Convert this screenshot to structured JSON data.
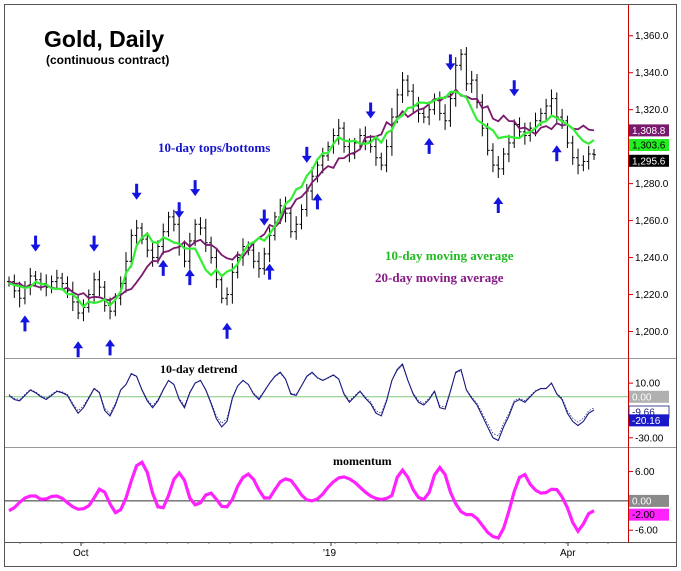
{
  "chart_data": {
    "type": "line",
    "title": "Gold, Daily",
    "subtitle": "(continuous contract)",
    "x_ticks": [
      "Oct",
      "'19",
      "Apr"
    ],
    "colors": {
      "bars": "#000000",
      "ma10": "#33ee33",
      "ma20": "#7a1a6e",
      "arrows": "#1414e0",
      "detrend": "#1a1a80",
      "momentum": "#ff22ff",
      "axis": "#cc0000",
      "annotation_blue": "#1414c8",
      "annotation_green": "#22bb22",
      "annotation_purple": "#881a88"
    },
    "annotations": {
      "tops_bottoms": "10-day tops/bottoms",
      "ma10_label": "10-day moving average",
      "ma20_label": "20-day moving average"
    },
    "price_panel": {
      "ylim": [
        1190,
        1375
      ],
      "yticks": [
        "1,360.0",
        "1,340.0",
        "1,320.0",
        "1,300.0",
        "1,280.0",
        "1,260.0",
        "1,240.0",
        "1,220.0",
        "1,200.0"
      ],
      "ytick_values": [
        1360,
        1340,
        1320,
        1300,
        1280,
        1260,
        1240,
        1220,
        1200
      ],
      "value_tags": [
        {
          "text": "1,308.8",
          "value": 1308.8,
          "bg": "#7a1a6e",
          "fg": "#ffffff"
        },
        {
          "text": "1,303.6",
          "value": 1303.6,
          "bg": "#22ee22",
          "fg": "#000000"
        },
        {
          "text": "1,295.6",
          "value": 1295.6,
          "bg": "#000000",
          "fg": "#ffffff"
        }
      ],
      "close": [
        1227,
        1222,
        1218,
        1224,
        1230,
        1228,
        1226,
        1224,
        1227,
        1229,
        1226,
        1222,
        1216,
        1210,
        1213,
        1220,
        1228,
        1224,
        1214,
        1211,
        1218,
        1226,
        1238,
        1252,
        1256,
        1250,
        1244,
        1240,
        1246,
        1254,
        1262,
        1258,
        1246,
        1238,
        1249,
        1258,
        1256,
        1248,
        1240,
        1228,
        1218,
        1220,
        1232,
        1240,
        1246,
        1244,
        1238,
        1234,
        1242,
        1252,
        1262,
        1268,
        1264,
        1254,
        1258,
        1266,
        1276,
        1284,
        1290,
        1295,
        1300,
        1306,
        1310,
        1300,
        1296,
        1302,
        1306,
        1303,
        1300,
        1294,
        1290,
        1300,
        1316,
        1328,
        1336,
        1330,
        1322,
        1318,
        1316,
        1320,
        1326,
        1318,
        1314,
        1326,
        1344,
        1350,
        1334,
        1336,
        1324,
        1310,
        1298,
        1290,
        1288,
        1296,
        1302,
        1312,
        1308,
        1306,
        1310,
        1314,
        1318,
        1322,
        1326,
        1316,
        1314,
        1302,
        1294,
        1290,
        1292,
        1296,
        1295.6
      ],
      "ma10": [
        1226.2,
        1225.1,
        1224.5,
        1223.6,
        1224.1,
        1226.9,
        1225.7,
        1225.5,
        1223.4,
        1223.0,
        1223.1,
        1220.2,
        1220.3,
        1217.2,
        1213.5,
        1216.2,
        1215.4,
        1216.1,
        1217.4,
        1214.1,
        1217.3,
        1221.6,
        1231.7,
        1235.6,
        1246.5,
        1250.7,
        1253.0,
        1248.5,
        1247.9,
        1250.9,
        1249.8,
        1248.1,
        1247.5,
        1245.0,
        1244.8,
        1244.9,
        1239.0,
        1233.3,
        1230.5,
        1233.4,
        1230.0,
        1232.4,
        1233.5,
        1236.5,
        1242.5,
        1247.0,
        1248.3,
        1250.7,
        1249.1,
        1252.7,
        1257.1,
        1262.2,
        1269.1,
        1271.4,
        1276.9,
        1278.2,
        1284.3,
        1287.4,
        1293.1,
        1296.4,
        1296.5,
        1301.5,
        1305.1,
        1303.3,
        1302.8,
        1303.2,
        1301.7,
        1301.5,
        1302.3,
        1305.2,
        1302.2,
        1307.4,
        1309.1,
        1315.1,
        1316.9,
        1320.9,
        1321.4,
        1323.9,
        1323.8,
        1323.4,
        1325.0,
        1326.5,
        1326.3,
        1329.6,
        1329.8,
        1328.1,
        1326.6,
        1320.5,
        1314.5,
        1312.5,
        1310.6,
        1308.8,
        1304.5,
        1305.2,
        1305.5,
        1304.9,
        1304.6,
        1307.2,
        1307.9,
        1310.0,
        1312.9,
        1313.7,
        1316.8,
        1315.6,
        1313.7,
        1311.9,
        1309.9,
        1306.2,
        1303.0,
        1301.6,
        1303.6
      ],
      "ma20": [
        1227.1,
        1225.8,
        1226.0,
        1223.8,
        1225.3,
        1224.6,
        1223.7,
        1224.8,
        1223.8,
        1223.1,
        1222.7,
        1223.7,
        1221.2,
        1219.8,
        1220.8,
        1218.1,
        1218.8,
        1218.5,
        1217.5,
        1216.9,
        1219.0,
        1219.7,
        1222.1,
        1223.0,
        1226.6,
        1230.6,
        1235.1,
        1238.2,
        1238.0,
        1242.9,
        1243.5,
        1245.1,
        1245.7,
        1248.6,
        1246.0,
        1248.5,
        1249.6,
        1246.8,
        1246.9,
        1244.9,
        1241.4,
        1239.6,
        1238.9,
        1241.8,
        1240.5,
        1244.2,
        1248.0,
        1250.6,
        1252.6,
        1257.6,
        1256.5,
        1259.4,
        1266.4,
        1266.8,
        1271.4,
        1272.8,
        1276.0,
        1280.7,
        1283.4,
        1287.1,
        1289.5,
        1288.5,
        1293.7,
        1293.8,
        1295.9,
        1296.8,
        1298.6,
        1304.9,
        1305.4,
        1305.5,
        1306.6,
        1313.2,
        1311.2,
        1315.0,
        1319.1,
        1316.1,
        1318.1,
        1320.0,
        1320.7,
        1323.1,
        1325.9,
        1324.7,
        1326.9,
        1327.2,
        1330.9,
        1327.6,
        1327.2,
        1325.7,
        1325.9,
        1320.8,
        1321.8,
        1315.1,
        1313.7,
        1316.8,
        1313.9,
        1313.7,
        1309.8,
        1310.3,
        1308.6,
        1306.8,
        1310.2,
        1311.1,
        1309.5,
        1312.7,
        1311.4,
        1312.1,
        1309.7,
        1309.4,
        1311.4,
        1309.2,
        1308.8
      ],
      "arrows": [
        {
          "i": 5,
          "dir": "down"
        },
        {
          "i": 3,
          "dir": "up"
        },
        {
          "i": 16,
          "dir": "down"
        },
        {
          "i": 13,
          "dir": "up"
        },
        {
          "i": 19,
          "dir": "up"
        },
        {
          "i": 24,
          "dir": "down"
        },
        {
          "i": 29,
          "dir": "up"
        },
        {
          "i": 32,
          "dir": "down"
        },
        {
          "i": 35,
          "dir": "down"
        },
        {
          "i": 34,
          "dir": "up"
        },
        {
          "i": 41,
          "dir": "up"
        },
        {
          "i": 48,
          "dir": "down"
        },
        {
          "i": 49,
          "dir": "up"
        },
        {
          "i": 56,
          "dir": "down"
        },
        {
          "i": 58,
          "dir": "up"
        },
        {
          "i": 68,
          "dir": "down"
        },
        {
          "i": 79,
          "dir": "up"
        },
        {
          "i": 83,
          "dir": "down"
        },
        {
          "i": 92,
          "dir": "up"
        },
        {
          "i": 95,
          "dir": "down"
        },
        {
          "i": 103,
          "dir": "up"
        },
        {
          "i": 113,
          "dir": "down"
        }
      ]
    },
    "detrend_panel": {
      "title": "10-day detrend",
      "ylim": [
        -36,
        24
      ],
      "yticks": [
        "10.00",
        "-30.00"
      ],
      "ytick_values": [
        10,
        -30
      ],
      "zero_label": "0.00",
      "tag_a": "-9.66",
      "tag_a_value": -9.66,
      "tag_b": "-20.16",
      "tag_b_value": -20.16,
      "values": [
        1,
        -2,
        -3,
        1,
        5,
        3,
        0,
        -2,
        1,
        4,
        3,
        1,
        -6,
        -12,
        -8,
        -1,
        6,
        3,
        -10,
        -14,
        -6,
        5,
        9,
        17,
        15,
        5,
        -3,
        -8,
        -3,
        5,
        12,
        9,
        -2,
        -8,
        3,
        10,
        12,
        5,
        -5,
        -16,
        -22,
        -18,
        -1,
        8,
        12,
        9,
        2,
        -2,
        4,
        10,
        15,
        18,
        13,
        2,
        1,
        8,
        15,
        18,
        14,
        12,
        14,
        16,
        13,
        2,
        -4,
        0,
        4,
        -1,
        -5,
        -12,
        -14,
        -3,
        12,
        20,
        24,
        12,
        2,
        -4,
        -6,
        -2,
        4,
        -8,
        -9,
        4,
        18,
        20,
        5,
        -1,
        -6,
        -14,
        -22,
        -30,
        -32,
        -22,
        -14,
        -4,
        -2,
        -4,
        0,
        4,
        6,
        6,
        10,
        2,
        -2,
        -12,
        -18,
        -21,
        -18,
        -12,
        -9.66
      ]
    },
    "momentum_panel": {
      "title": "momentum",
      "ylim": [
        -8,
        10
      ],
      "yticks": [
        "6.00",
        "-6.00"
      ],
      "ytick_values": [
        6,
        -6
      ],
      "zero_label": "0.00",
      "tag": "-2.00",
      "tag_value": -2.0,
      "values": [
        -2,
        -1.4,
        -0.3,
        0.6,
        1.0,
        1.0,
        0.3,
        0.4,
        0.9,
        1.0,
        0.5,
        -0.4,
        -1.2,
        -1.7,
        -1.6,
        -1.0,
        0.6,
        2.4,
        1.8,
        -0.6,
        -2.4,
        -1.8,
        0.6,
        4.1,
        7.2,
        7.9,
        5.8,
        1.6,
        -1.2,
        -1.4,
        1.1,
        4.4,
        5.7,
        4.2,
        0.6,
        -0.8,
        -0.4,
        1.2,
        1.6,
        0.3,
        -1.1,
        -1.2,
        0.3,
        3.0,
        4.8,
        5.5,
        4.4,
        2.2,
        0.6,
        0.6,
        2.3,
        3.9,
        4.5,
        4.2,
        2.8,
        1.2,
        0.2,
        0.0,
        0.4,
        1.4,
        2.8,
        3.9,
        4.7,
        4.9,
        4.5,
        3.8,
        2.8,
        1.8,
        1.0,
        0.5,
        0.3,
        0.5,
        1.1,
        4.8,
        6.3,
        4.8,
        2.3,
        0.7,
        0.3,
        1.7,
        5.3,
        6.8,
        5.4,
        1.8,
        -0.6,
        -2.2,
        -2.8,
        -2.8,
        -3.6,
        -5.0,
        -6.4,
        -7.3,
        -7.6,
        -5.6,
        -2.1,
        1.9,
        4.8,
        5.4,
        3.4,
        2.2,
        1.6,
        1.7,
        2.4,
        2.3,
        0.8,
        -1.4,
        -4.4,
        -6.2,
        -4.7,
        -2.6,
        -2.0
      ]
    }
  }
}
